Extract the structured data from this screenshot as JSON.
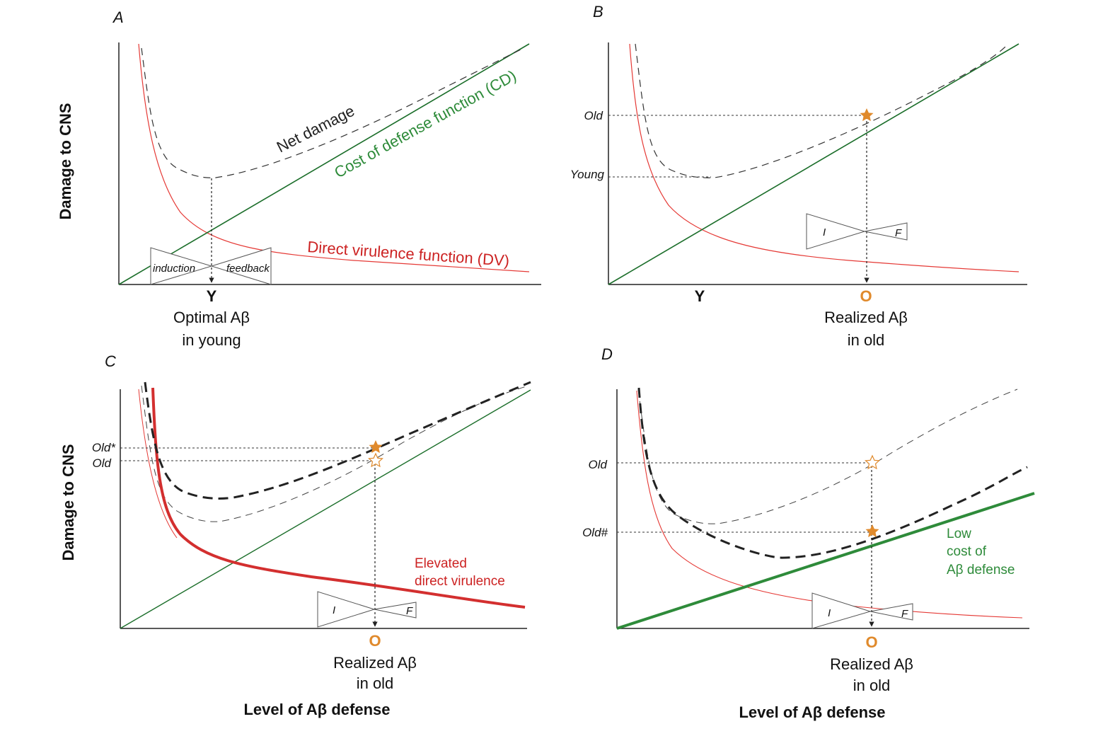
{
  "panels": {
    "A": {
      "letter": "A",
      "y_axis_label": "Damage to CNS",
      "net_damage_label": "Net damage",
      "cd_label": "Cost of defense function (CD)",
      "dv_label": "Direct virulence function (DV)",
      "induction_label": "induction",
      "feedback_label": "feedback",
      "x_tick": "Y",
      "caption_line1": "Optimal Aβ",
      "caption_line2": "in young"
    },
    "B": {
      "letter": "B",
      "level_old": "Old",
      "level_young": "Young",
      "valve_i": "I",
      "valve_f": "F",
      "x_tick_y": "Y",
      "x_tick_o": "O",
      "caption_line1": "Realized Aβ",
      "caption_line2": "in old"
    },
    "C": {
      "letter": "C",
      "y_axis_label": "Damage to CNS",
      "level_old_star": "Old*",
      "level_old": "Old",
      "elevated_line1": "Elevated",
      "elevated_line2": "direct virulence",
      "valve_i": "I",
      "valve_f": "F",
      "x_tick_o": "O",
      "caption_line1": "Realized Aβ",
      "caption_line2": "in old",
      "x_axis_label": "Level of Aβ defense"
    },
    "D": {
      "letter": "D",
      "level_old": "Old",
      "level_old_hash": "Old#",
      "low_cost_line1": "Low",
      "low_cost_line2": "cost of",
      "low_cost_line3": "Aβ defense",
      "valve_i": "I",
      "valve_f": "F",
      "x_tick_o": "O",
      "caption_line1": "Realized Aβ",
      "caption_line2": "in old",
      "x_axis_label": "Level of Aβ defense"
    }
  },
  "colors": {
    "cost_of_defense": "#2e7d32",
    "direct_virulence": "#d32f2f",
    "net_damage": "#333333",
    "star": "#e08a2c"
  }
}
